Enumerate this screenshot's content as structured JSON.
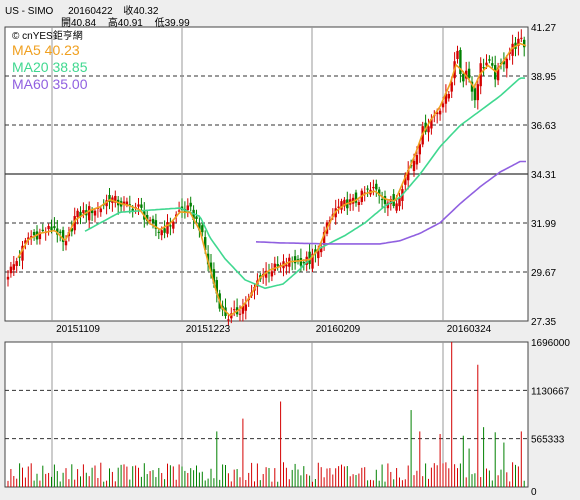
{
  "header": {
    "symbol": "US - SIMO",
    "date": "20160422",
    "close": "收40.32",
    "open": "開40.84",
    "high": "高40.91",
    "low": "低39.99"
  },
  "watermark": "© cnYES鉅亨網",
  "chart_data": [
    {
      "type": "candlestick",
      "price_ticks": [
        "41.27",
        "38.95",
        "36.63",
        "34.31",
        "31.99",
        "29.67",
        "27.35"
      ],
      "ylim": [
        27.35,
        41.27
      ],
      "date_ticks": [
        "20151109",
        "20151223",
        "20160209",
        "20160324"
      ],
      "up_color": "#d40000",
      "down_color": "#008000",
      "ma": [
        {
          "label": "MA5 40.23",
          "color": "#f0a020"
        },
        {
          "label": "MA20 38.85",
          "color": "#40d890"
        },
        {
          "label": "MA60 35.00",
          "color": "#9060e0"
        }
      ],
      "ma20_knots": [
        [
          20,
          30.7
        ],
        [
          60,
          30.6
        ],
        [
          85,
          31.6
        ],
        [
          120,
          32.5
        ],
        [
          150,
          32.6
        ],
        [
          180,
          32.7
        ],
        [
          200,
          32.3
        ],
        [
          210,
          31.3
        ],
        [
          225,
          30.3
        ],
        [
          245,
          29.3
        ],
        [
          265,
          28.9
        ],
        [
          283,
          29.1
        ],
        [
          300,
          29.8
        ],
        [
          320,
          30.8
        ],
        [
          345,
          31.4
        ],
        [
          365,
          32.0
        ],
        [
          385,
          32.8
        ],
        [
          400,
          33.2
        ],
        [
          420,
          34.3
        ],
        [
          440,
          35.6
        ],
        [
          460,
          36.6
        ],
        [
          480,
          37.3
        ],
        [
          500,
          38.0
        ],
        [
          520,
          38.85
        ]
      ],
      "ma60_knots": [
        [
          256,
          31.1
        ],
        [
          280,
          31.05
        ],
        [
          330,
          31.0
        ],
        [
          380,
          31.0
        ],
        [
          400,
          31.15
        ],
        [
          420,
          31.5
        ],
        [
          440,
          32.0
        ],
        [
          460,
          32.9
        ],
        [
          480,
          33.7
        ],
        [
          500,
          34.4
        ],
        [
          520,
          34.9
        ]
      ],
      "close_knots": [
        [
          8,
          29.6
        ],
        [
          18,
          30.3
        ],
        [
          28,
          31.3
        ],
        [
          40,
          31.5
        ],
        [
          55,
          31.8
        ],
        [
          65,
          30.8
        ],
        [
          75,
          32.3
        ],
        [
          90,
          32.6
        ],
        [
          100,
          32.7
        ],
        [
          110,
          33.2
        ],
        [
          120,
          32.9
        ],
        [
          130,
          32.8
        ],
        [
          140,
          32.7
        ],
        [
          150,
          31.9
        ],
        [
          160,
          31.6
        ],
        [
          170,
          31.9
        ],
        [
          180,
          32.6
        ],
        [
          190,
          32.6
        ],
        [
          200,
          31.8
        ],
        [
          208,
          30.1
        ],
        [
          216,
          28.8
        ],
        [
          222,
          27.8
        ],
        [
          230,
          27.5
        ],
        [
          240,
          27.9
        ],
        [
          250,
          28.4
        ],
        [
          260,
          29.5
        ],
        [
          270,
          29.8
        ],
        [
          280,
          29.9
        ],
        [
          290,
          30.2
        ],
        [
          300,
          30.2
        ],
        [
          310,
          30.2
        ],
        [
          318,
          30.6
        ],
        [
          325,
          31.6
        ],
        [
          335,
          32.6
        ],
        [
          345,
          32.9
        ],
        [
          355,
          33.0
        ],
        [
          365,
          33.4
        ],
        [
          375,
          33.6
        ],
        [
          385,
          33.1
        ],
        [
          395,
          32.8
        ],
        [
          405,
          34.2
        ],
        [
          415,
          35.1
        ],
        [
          422,
          36.3
        ],
        [
          430,
          36.8
        ],
        [
          440,
          37.5
        ],
        [
          450,
          38.2
        ],
        [
          456,
          40.3
        ],
        [
          462,
          38.7
        ],
        [
          468,
          39.4
        ],
        [
          474,
          37.6
        ],
        [
          480,
          39.4
        ],
        [
          488,
          39.6
        ],
        [
          496,
          38.9
        ],
        [
          505,
          39.8
        ],
        [
          512,
          40.3
        ],
        [
          520,
          40.6
        ],
        [
          526,
          40.32
        ]
      ]
    },
    {
      "type": "bar",
      "series_name": "volume",
      "volume_ticks": [
        "1696000",
        "1130667",
        "565333",
        "0"
      ],
      "ylim": [
        0,
        1696000
      ],
      "date_ticks": [
        "20151109",
        "20151223",
        "20160209",
        "20160324"
      ],
      "spikes": [
        [
          216,
          650000
        ],
        [
          242,
          800000
        ],
        [
          282,
          1000000
        ],
        [
          412,
          900000
        ],
        [
          420,
          650000
        ],
        [
          440,
          620000
        ],
        [
          452,
          1696000
        ],
        [
          462,
          600000
        ],
        [
          470,
          450000
        ],
        [
          478,
          1430000
        ],
        [
          484,
          700000
        ],
        [
          496,
          640000
        ],
        [
          505,
          520000
        ],
        [
          520,
          650000
        ]
      ]
    }
  ]
}
